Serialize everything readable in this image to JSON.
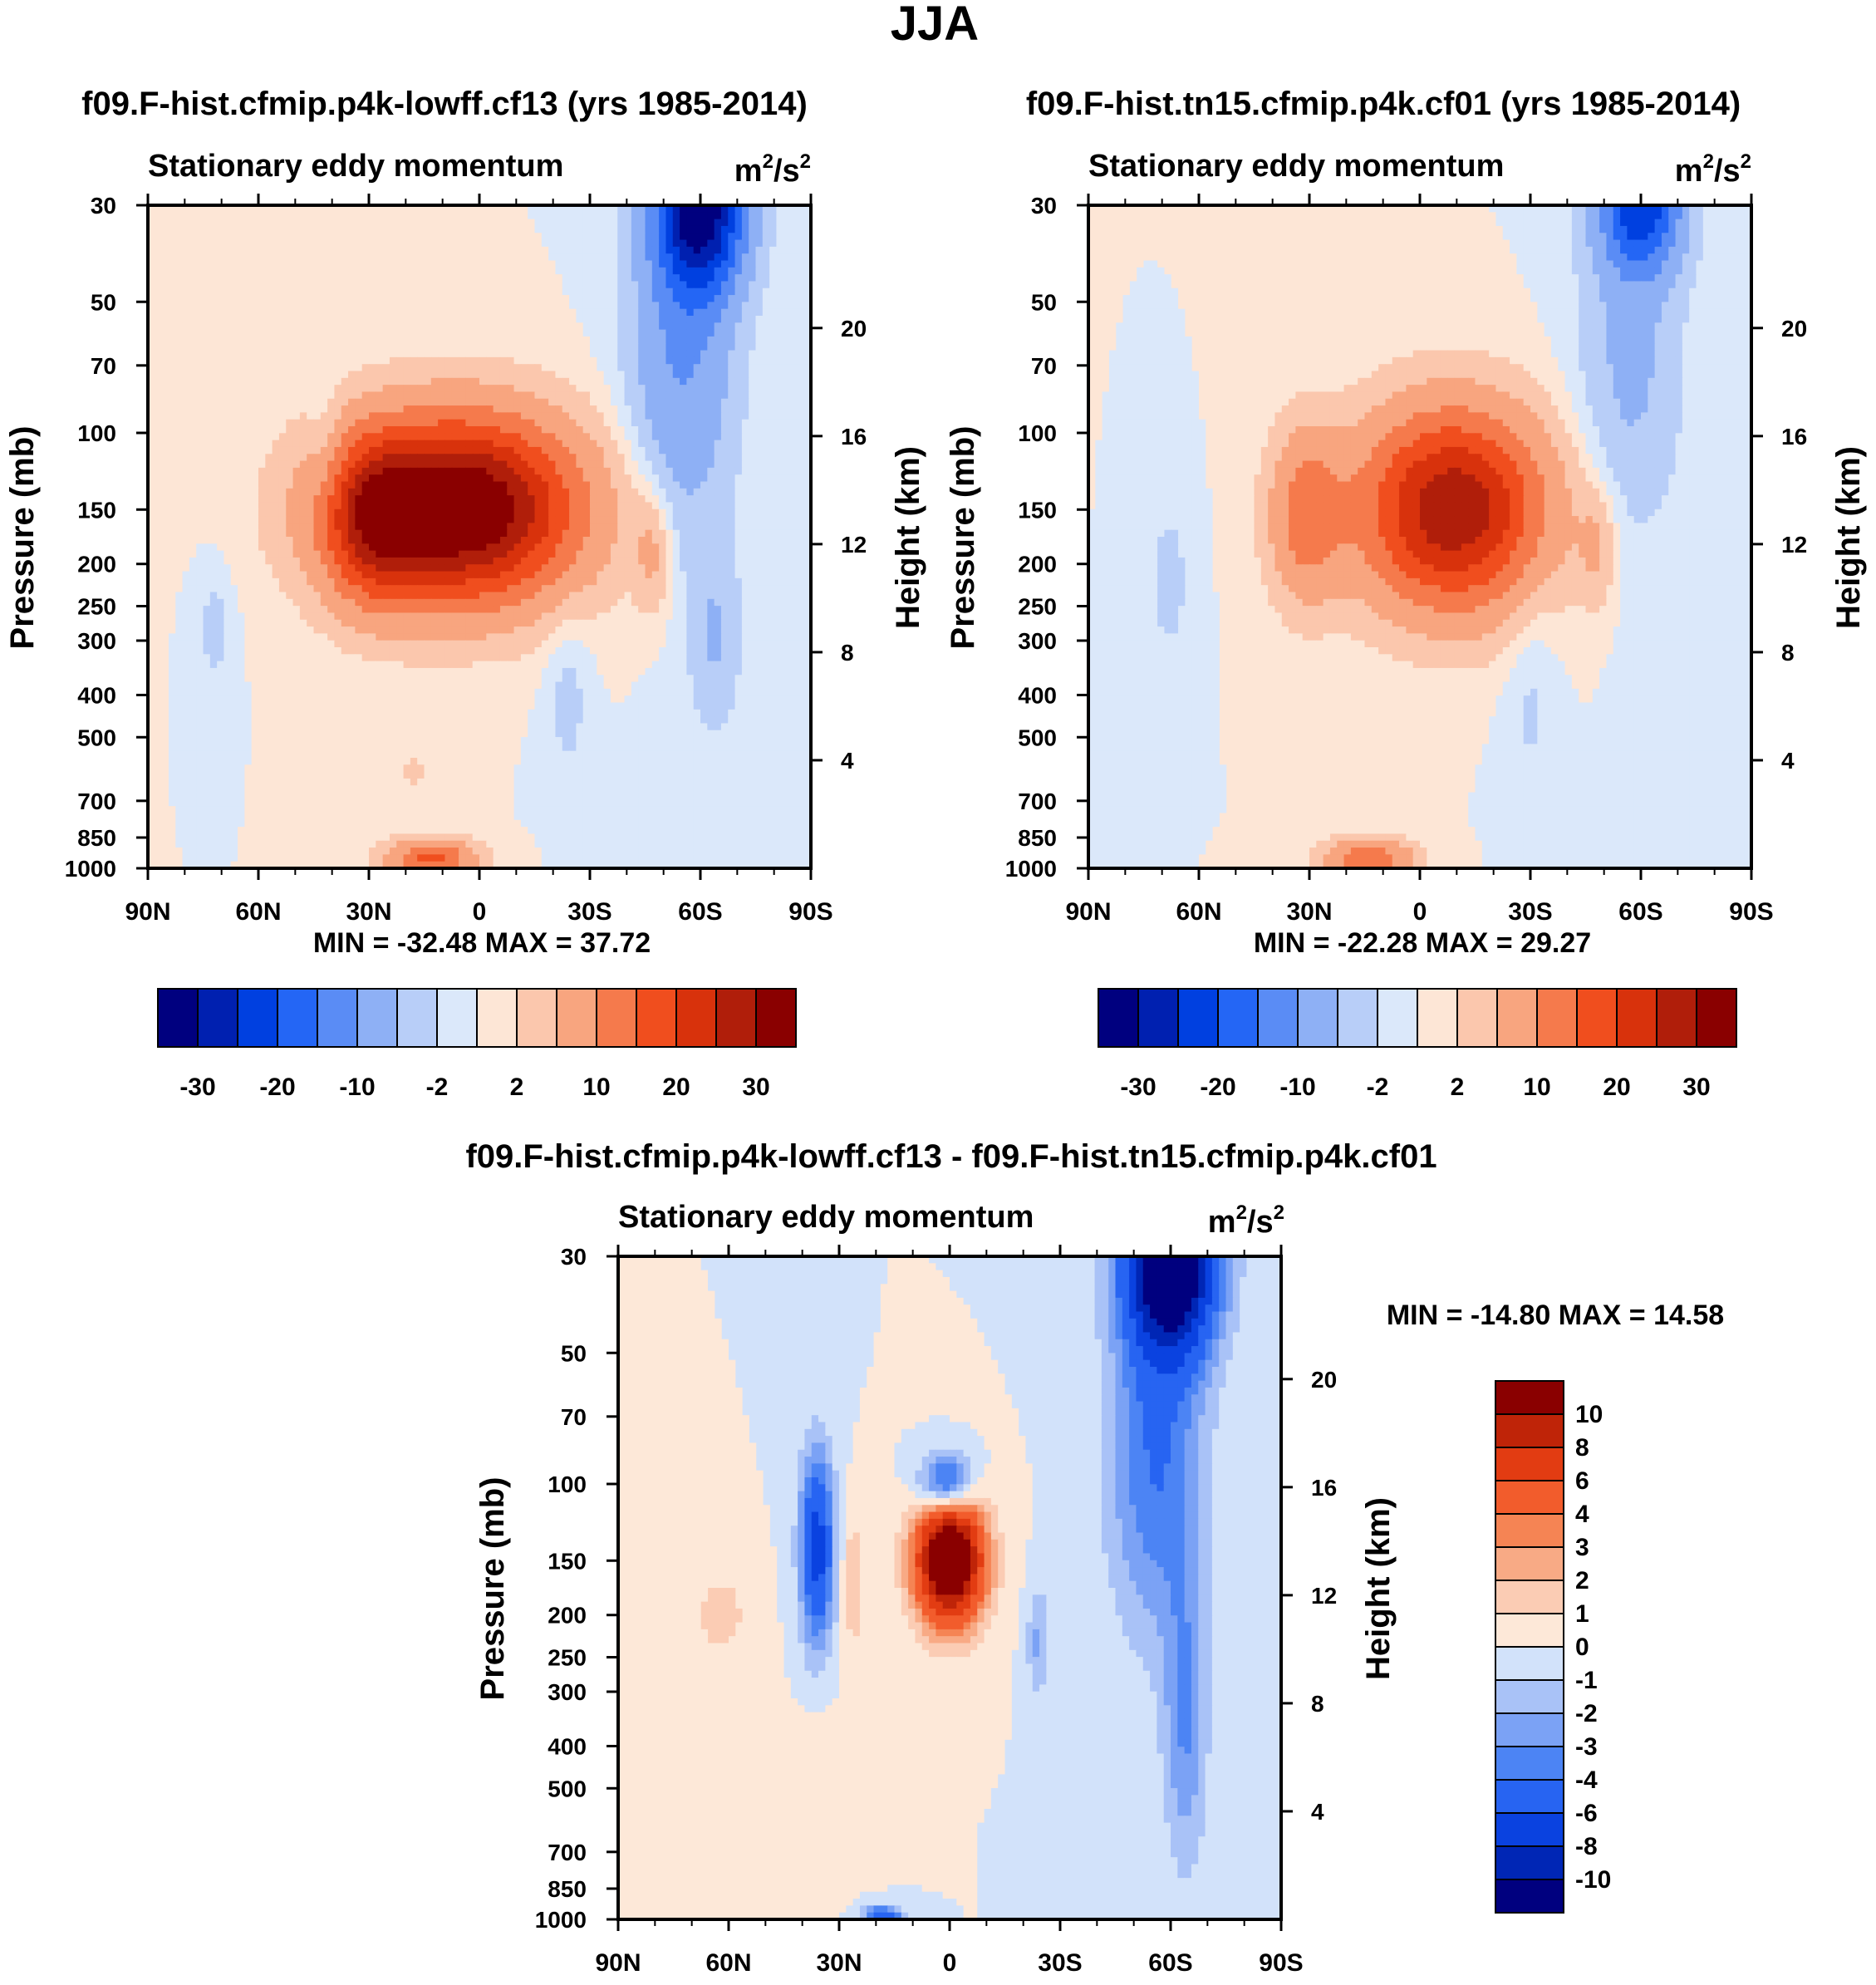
{
  "title": "JJA",
  "colors": {
    "abs_scale": [
      "#00007f",
      "#0020b0",
      "#0040e0",
      "#2466f5",
      "#5a8cf5",
      "#8eb0f5",
      "#b8cef8",
      "#dbe8fa",
      "#fde6d6",
      "#fbc7ad",
      "#f8a57f",
      "#f57a4c",
      "#f04e1e",
      "#d8320c",
      "#b01e0a",
      "#8a0000"
    ],
    "diff_scale": [
      "#00007f",
      "#0026b5",
      "#0a42e0",
      "#2764f2",
      "#4c84f4",
      "#7ba2f5",
      "#a9c2f7",
      "#d2e2fa",
      "#fde8d8",
      "#fbccb4",
      "#f8aa85",
      "#f58454",
      "#f25c2c",
      "#e23c12",
      "#bf2408",
      "#8a0000"
    ]
  },
  "panels": [
    {
      "title": "f09.F-hist.cfmip.p4k-lowff.cf13 (yrs 1985-2014)",
      "left_string": "Stationary eddy momentum",
      "units_base": "m",
      "units_exp1": "2",
      "units_mid": "/s",
      "units_exp2": "2",
      "stats": "MIN = -32.48  MAX =  37.72",
      "ylabel": "Pressure (mb)",
      "y2label": "Height (km)"
    },
    {
      "title": "f09.F-hist.tn15.cfmip.p4k.cf01 (yrs 1985-2014)",
      "left_string": "Stationary eddy momentum",
      "units_base": "m",
      "units_exp1": "2",
      "units_mid": "/s",
      "units_exp2": "2",
      "stats": "MIN = -22.28  MAX =  29.27",
      "ylabel": "Pressure (mb)",
      "y2label": "Height (km)"
    },
    {
      "title": "f09.F-hist.cfmip.p4k-lowff.cf13 - f09.F-hist.tn15.cfmip.p4k.cf01",
      "left_string": "Stationary eddy momentum",
      "units_base": "m",
      "units_exp1": "2",
      "units_mid": "/s",
      "units_exp2": "2",
      "stats": "MIN = -14.80  MAX =  14.58",
      "ylabel": "Pressure (mb)",
      "y2label": "Height (km)"
    }
  ],
  "axes": {
    "x_ticks": [
      "90N",
      "60N",
      "30N",
      "0",
      "30S",
      "60S",
      "90S"
    ],
    "p_ticks": [
      "30",
      "50",
      "70",
      "100",
      "150",
      "200",
      "250",
      "300",
      "400",
      "500",
      "700",
      "850",
      "1000"
    ],
    "z_ticks": [
      "20",
      "16",
      "12",
      "8",
      "4"
    ]
  },
  "colorbars": {
    "abs_labels": [
      "-30",
      "-20",
      "-10",
      "-2",
      "2",
      "10",
      "20",
      "30"
    ],
    "diff_labels": [
      "10",
      "8",
      "6",
      "4",
      "3",
      "2",
      "1",
      "0",
      "-1",
      "-2",
      "-3",
      "-4",
      "-6",
      "-8",
      "-10"
    ]
  },
  "chart_data": [
    {
      "type": "heatmap",
      "title": "f09.F-hist.cfmip.p4k-lowff.cf13 (yrs 1985-2014)",
      "variable": "Stationary eddy momentum",
      "units": "m2/s2",
      "x": [
        "90N",
        "60N",
        "30N",
        "0",
        "30S",
        "60S",
        "90S"
      ],
      "y_pressure_mb": [
        30,
        50,
        70,
        100,
        150,
        200,
        250,
        300,
        400,
        500,
        700,
        850,
        1000
      ],
      "y_height_km": [
        4,
        8,
        12,
        16,
        20
      ],
      "contour_levels": [
        -30,
        -25,
        -20,
        -15,
        -10,
        -5,
        -2,
        0,
        2,
        5,
        10,
        15,
        20,
        25,
        30
      ],
      "min": -32.48,
      "max": 37.72,
      "features": [
        {
          "lat": 6,
          "p": 150,
          "value": 37.7,
          "rx": 32,
          "ry": 0.48
        },
        {
          "lat": 29,
          "p": 160,
          "value": 14,
          "rx": 12,
          "ry": 0.42
        },
        {
          "lat": -47,
          "p": 190,
          "value": 6,
          "rx": 5,
          "ry": 0.32
        },
        {
          "lat": 13,
          "p": 950,
          "value": 16,
          "rx": 12,
          "ry": 0.1
        },
        {
          "lat": -60,
          "p": 30,
          "value": -32.5,
          "rx": 12,
          "ry": 0.45
        },
        {
          "lat": -55,
          "p": 70,
          "value": -10,
          "rx": 14,
          "ry": 0.9
        },
        {
          "lat": -64,
          "p": 300,
          "value": -5,
          "rx": 7,
          "ry": 0.5
        },
        {
          "lat": 42,
          "p": 110,
          "value": -3,
          "rx": 5,
          "ry": 0.32
        },
        {
          "lat": 72,
          "p": 280,
          "value": -3,
          "rx": 5,
          "ry": 0.32
        },
        {
          "lat": -24,
          "p": 400,
          "value": -3,
          "rx": 6,
          "ry": 0.5
        },
        {
          "lat": 18,
          "p": 600,
          "value": 2.5,
          "rx": 5,
          "ry": 0.12
        }
      ]
    },
    {
      "type": "heatmap",
      "title": "f09.F-hist.tn15.cfmip.p4k.cf01 (yrs 1985-2014)",
      "variable": "Stationary eddy momentum",
      "units": "m2/s2",
      "x": [
        "90N",
        "60N",
        "30N",
        "0",
        "30S",
        "60S",
        "90S"
      ],
      "y_pressure_mb": [
        30,
        50,
        70,
        100,
        150,
        200,
        250,
        300,
        400,
        500,
        700,
        850,
        1000
      ],
      "y_height_km": [
        4,
        8,
        12,
        16,
        20
      ],
      "contour_levels": [
        -30,
        -25,
        -20,
        -15,
        -10,
        -5,
        -2,
        0,
        2,
        5,
        10,
        15,
        20,
        25,
        30
      ],
      "min": -22.28,
      "max": 29.27,
      "features": [
        {
          "lat": -9,
          "p": 150,
          "value": 29.3,
          "rx": 25,
          "ry": 0.52
        },
        {
          "lat": 31,
          "p": 155,
          "value": 12,
          "rx": 10,
          "ry": 0.45
        },
        {
          "lat": -48,
          "p": 185,
          "value": 5,
          "rx": 5,
          "ry": 0.3
        },
        {
          "lat": 14,
          "p": 950,
          "value": 14,
          "rx": 12,
          "ry": 0.1
        },
        {
          "lat": -60,
          "p": 30,
          "value": -22.3,
          "rx": 11,
          "ry": 0.35
        },
        {
          "lat": -57,
          "p": 70,
          "value": -6,
          "rx": 14,
          "ry": 0.9
        },
        {
          "lat": 68,
          "p": 220,
          "value": -3,
          "rx": 6,
          "ry": 0.45
        },
        {
          "lat": -30,
          "p": 380,
          "value": -2.5,
          "rx": 7,
          "ry": 0.7
        }
      ]
    },
    {
      "type": "heatmap",
      "title": "f09.F-hist.cfmip.p4k-lowff.cf13 - f09.F-hist.tn15.cfmip.p4k.cf01",
      "variable": "Stationary eddy momentum",
      "units": "m2/s2",
      "x": [
        "90N",
        "60N",
        "30N",
        "0",
        "30S",
        "60S",
        "90S"
      ],
      "y_pressure_mb": [
        30,
        50,
        70,
        100,
        150,
        200,
        250,
        300,
        400,
        500,
        700,
        850,
        1000
      ],
      "y_height_km": [
        4,
        8,
        12,
        16,
        20
      ],
      "contour_levels": [
        -10,
        -8,
        -6,
        -4,
        -3,
        -2,
        -1,
        0,
        1,
        2,
        3,
        4,
        6,
        8,
        10
      ],
      "min": -14.8,
      "max": 14.58,
      "features": [
        {
          "lat": 0,
          "p": 150,
          "value": 14.6,
          "rx": 9,
          "ry": 0.32
        },
        {
          "lat": 1,
          "p": 100,
          "value": -6.5,
          "rx": 7,
          "ry": 0.16
        },
        {
          "lat": 36,
          "p": 140,
          "value": -7,
          "rx": 4.5,
          "ry": 0.5
        },
        {
          "lat": 26,
          "p": 170,
          "value": 2,
          "rx": 3,
          "ry": 0.35
        },
        {
          "lat": 62,
          "p": 200,
          "value": 1.5,
          "rx": 8,
          "ry": 0.25
        },
        {
          "lat": -60,
          "p": 30,
          "value": -14.8,
          "rx": 12,
          "ry": 0.5
        },
        {
          "lat": -56,
          "p": 90,
          "value": -4,
          "rx": 13,
          "ry": 0.9
        },
        {
          "lat": -64,
          "p": 350,
          "value": -3,
          "rx": 6,
          "ry": 0.8
        },
        {
          "lat": -24,
          "p": 230,
          "value": -2.2,
          "rx": 3,
          "ry": 0.3
        },
        {
          "lat": 18,
          "p": 990,
          "value": -6,
          "rx": 5,
          "ry": 0.06
        },
        {
          "lat": 34,
          "p": 500,
          "value": 0.8,
          "rx": 10,
          "ry": 0.4
        }
      ]
    }
  ]
}
